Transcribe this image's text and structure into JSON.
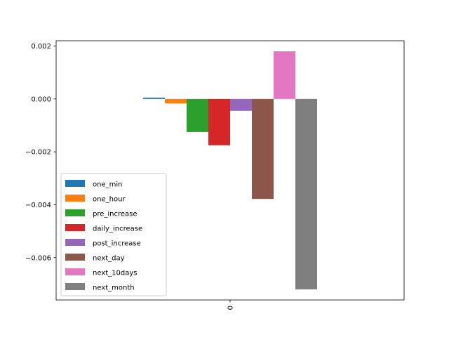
{
  "chart_data": {
    "type": "bar",
    "title": "",
    "xlabel": "",
    "ylabel": "",
    "categories": [
      "0"
    ],
    "ylim": [
      -0.0076,
      0.0022
    ],
    "yticks": [
      0.002,
      0.0,
      -0.002,
      -0.004,
      -0.006
    ],
    "ytick_labels": [
      "0.002",
      "0.000",
      "−0.002",
      "−0.004",
      "−0.006"
    ],
    "xtick_rotation": 90,
    "grid": false,
    "legend_position": "lower-left",
    "series": [
      {
        "name": "one_min",
        "values": [
          5e-05
        ],
        "color": "#1f77b4"
      },
      {
        "name": "one_hour",
        "values": [
          -0.00017
        ],
        "color": "#ff7f0e"
      },
      {
        "name": "pre_increase",
        "values": [
          -0.00125
        ],
        "color": "#2ca02c"
      },
      {
        "name": "daily_increase",
        "values": [
          -0.00175
        ],
        "color": "#d62728"
      },
      {
        "name": "post_increase",
        "values": [
          -0.00045
        ],
        "color": "#9467bd"
      },
      {
        "name": "next_day",
        "values": [
          -0.00378
        ],
        "color": "#8c564b"
      },
      {
        "name": "next_10days",
        "values": [
          0.0018
        ],
        "color": "#e377c2"
      },
      {
        "name": "next_month",
        "values": [
          -0.0072
        ],
        "color": "#7f7f7f"
      }
    ]
  }
}
